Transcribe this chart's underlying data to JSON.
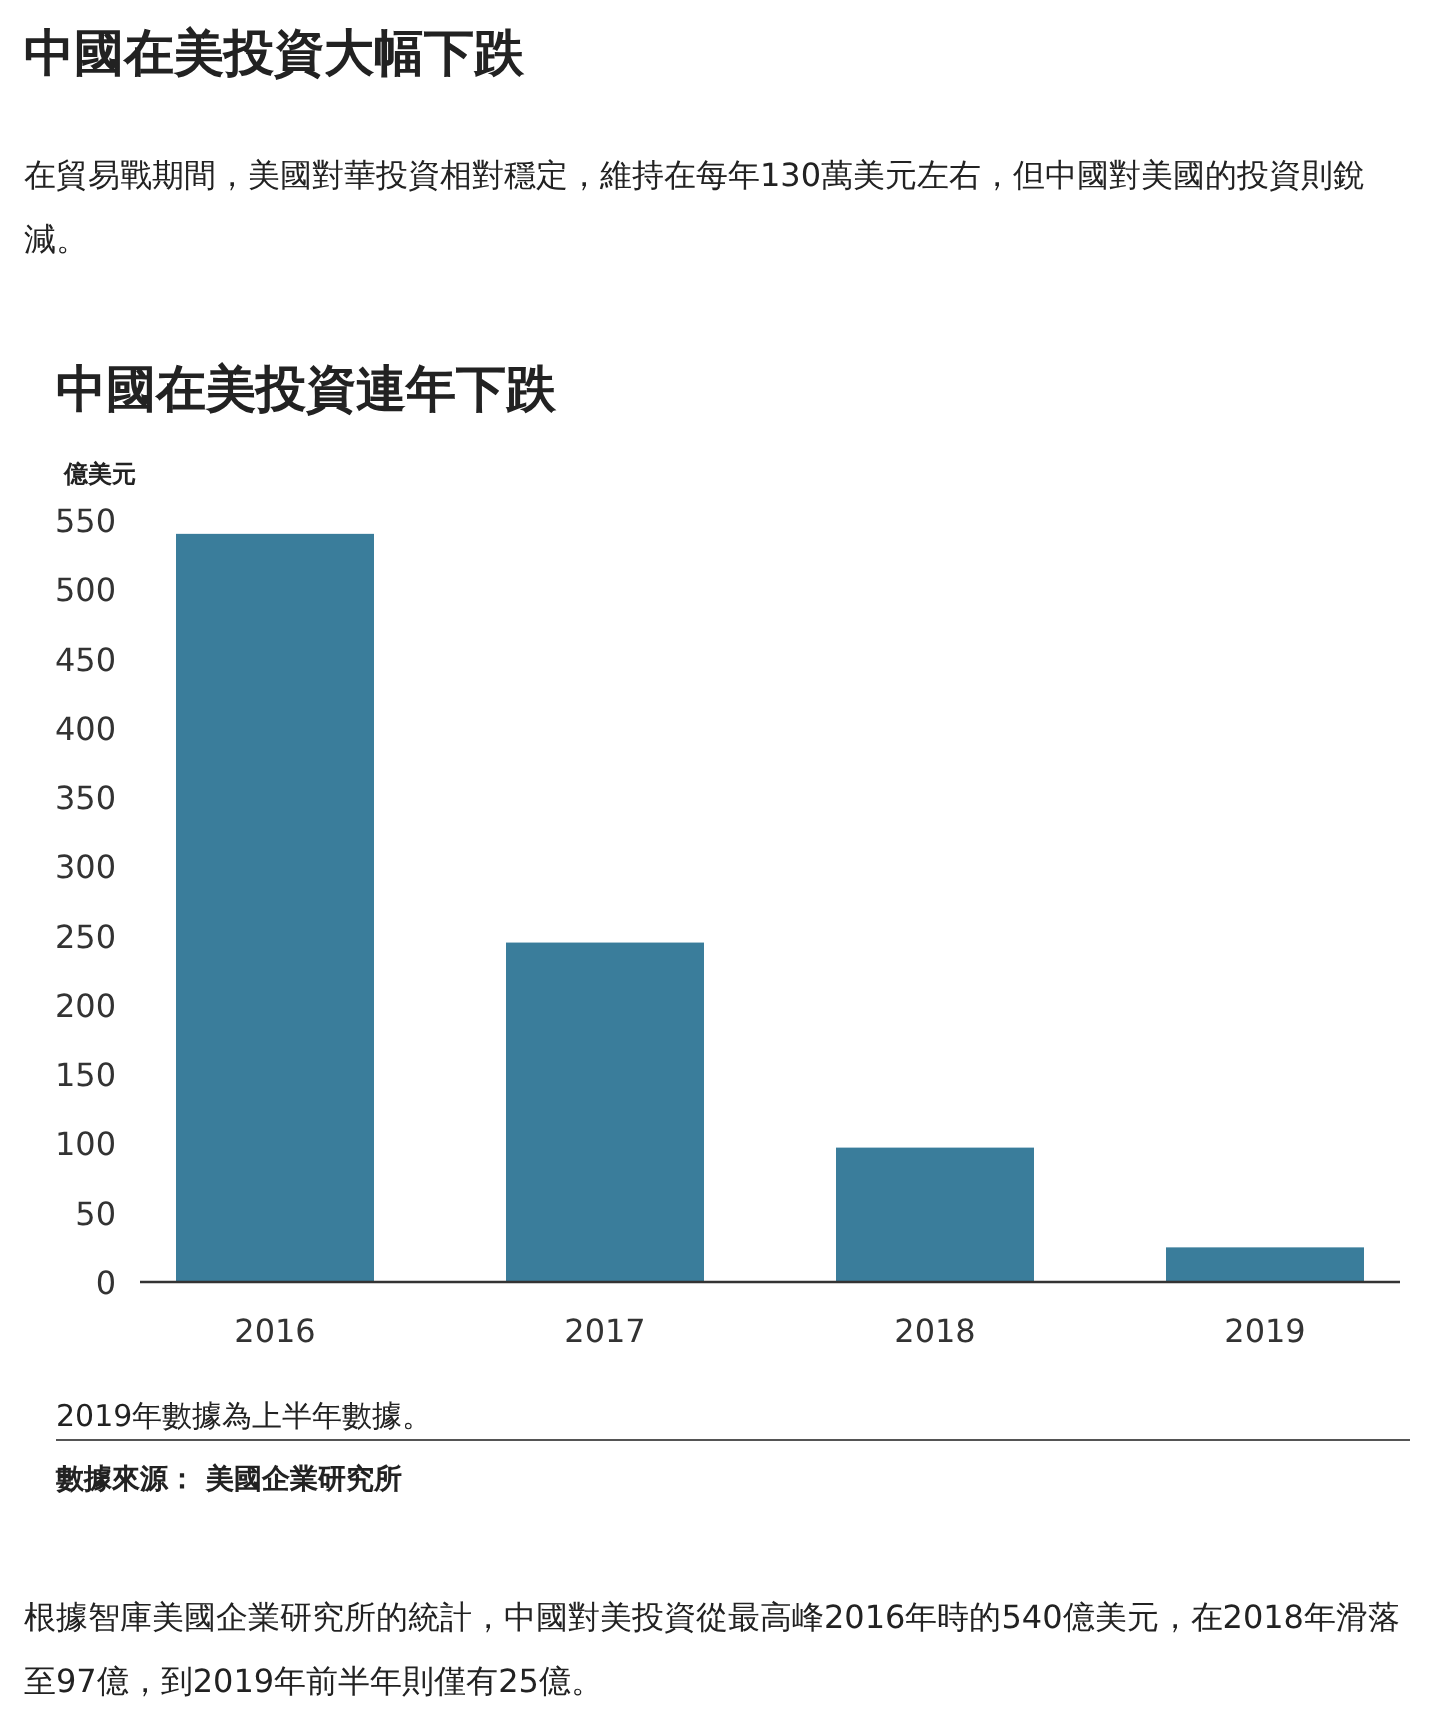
{
  "chart_data": {
    "type": "bar",
    "title": "中國在美投資連年下跌",
    "ylabel": "億美元",
    "categories": [
      "2016",
      "2017",
      "2018",
      "2019"
    ],
    "values": [
      540,
      245,
      97,
      25
    ],
    "color": "#3a7d9b",
    "ylim": [
      0,
      550
    ],
    "yticks": [
      0,
      50,
      100,
      150,
      200,
      250,
      300,
      350,
      400,
      450,
      500,
      550
    ],
    "annotations": [
      "中國在美投資大幅下跌",
      "在貿易戰期間，美國對華投資相對穩定，維持在每年130萬美元左右，但中國對美國的投資則銳減。",
      "2019年數據為上半年數據。",
      "數據來源： 美國企業研究所",
      "根據智庫美國企業研究所的統計，中國對美投資從最高峰2016年時的540億美元，在2018年滑落至97億，到2019年前半年則僅有25億。"
    ]
  }
}
